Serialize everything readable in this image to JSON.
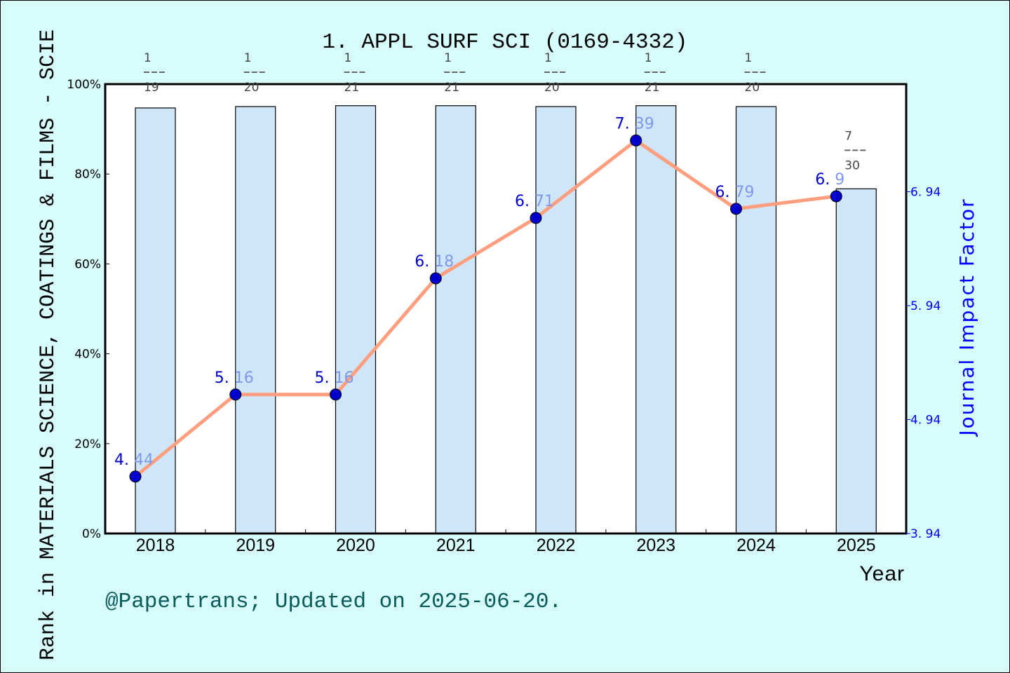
{
  "chart": {
    "title": "1. APPL SURF SCI (0169-4332)",
    "left_axis_label": "Rank in MATERIALS SCIENCE, COATINGS & FILMS - SCIE",
    "right_axis_label": "Journal Impact Factor",
    "x_axis_label": "Year",
    "footer": "@Papertrans; Updated on 2025-06-20.",
    "left_ticks": [
      "0%",
      "20%",
      "40%",
      "60%",
      "80%",
      "100%"
    ],
    "right_ticks": [
      "3.94",
      "4.94",
      "5.94",
      "6.94"
    ]
  },
  "chart_data": {
    "type": "bar+line",
    "title": "1. APPL SURF SCI (0169-4332)",
    "xlabel": "Year",
    "ylabel": "Rank in MATERIALS SCIENCE, COATINGS & FILMS - SCIE",
    "y2label": "Journal Impact Factor",
    "categories": [
      "2018",
      "2019",
      "2020",
      "2021",
      "2022",
      "2023",
      "2024",
      "2025"
    ],
    "ylim": [
      0,
      100
    ],
    "y2lim": [
      3.94,
      7.9
    ],
    "series": [
      {
        "name": "Rank percentile",
        "type": "bar",
        "axis": "left",
        "color": "#c5e0f7",
        "ranks": [
          "1/19",
          "1/20",
          "1/21",
          "1/21",
          "1/20",
          "1/21",
          "1/20",
          "7/30"
        ],
        "values": [
          94.7,
          95.0,
          95.2,
          95.2,
          95.0,
          95.2,
          95.0,
          76.7
        ]
      },
      {
        "name": "Journal Impact Factor",
        "type": "line",
        "axis": "right",
        "color": "#ff9f7f",
        "values": [
          4.44,
          5.16,
          5.16,
          6.18,
          6.71,
          7.39,
          6.79,
          6.9
        ],
        "labels": [
          [
            "4.",
            "44"
          ],
          [
            "5.",
            "16"
          ],
          [
            "5.",
            "16"
          ],
          [
            "6.",
            "18"
          ],
          [
            "6.",
            "71"
          ],
          [
            "7.",
            "39"
          ],
          [
            "6.",
            "79"
          ],
          [
            "6.",
            "9"
          ]
        ]
      }
    ],
    "fractions": [
      {
        "num": "1",
        "den": "19"
      },
      {
        "num": "1",
        "den": "20"
      },
      {
        "num": "1",
        "den": "21"
      },
      {
        "num": "1",
        "den": "21"
      },
      {
        "num": "1",
        "den": "20"
      },
      {
        "num": "1",
        "den": "21"
      },
      {
        "num": "1",
        "den": "20"
      },
      {
        "num": "7",
        "den": "30"
      }
    ],
    "colors": {
      "background": "#d6fcfc",
      "plot_bg": "#ffffff",
      "bar": "#c5e0f7",
      "line": "#ff9f7f",
      "marker": "#0000cc",
      "right_axis": "#0000ff",
      "footer": "#0b5a5a"
    }
  }
}
